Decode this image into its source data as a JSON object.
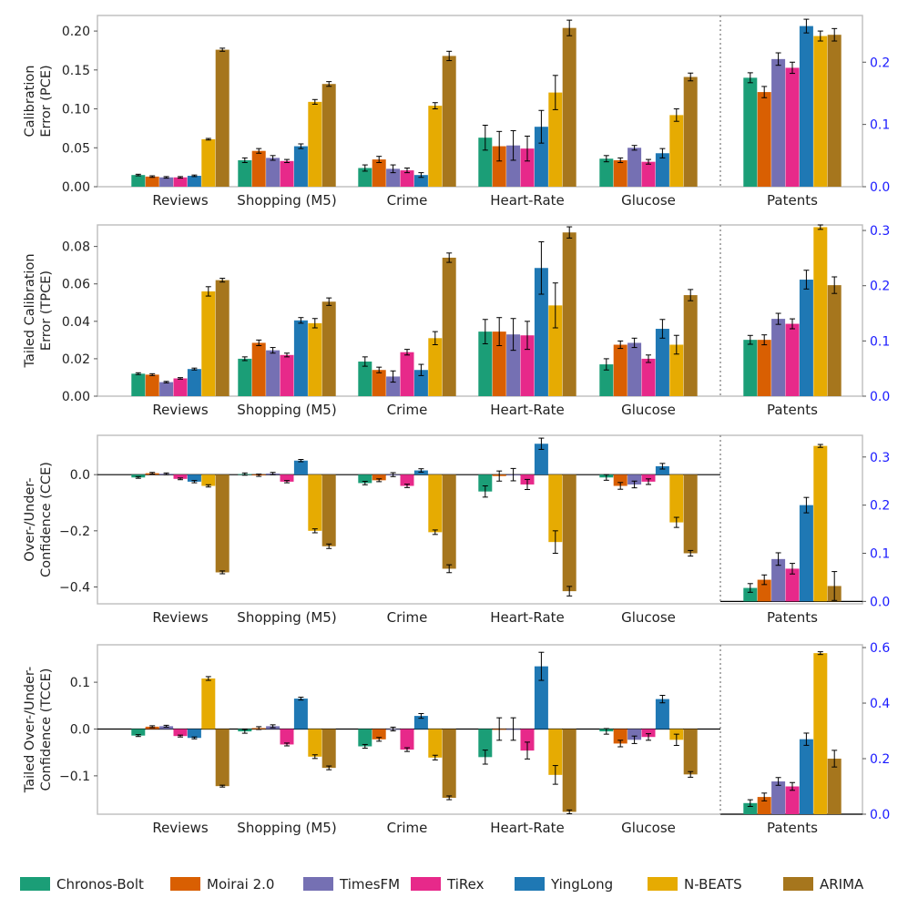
{
  "colors": {
    "Chronos-Bolt": "#1b9e77",
    "Moirai 2.0": "#d95f02",
    "TimesFM": "#7570b3",
    "TiRex": "#e7298a",
    "YingLong": "#1f78b4",
    "N-BEATS": "#e6ab02",
    "ARIMA": "#a6761d",
    "right_axis": "#1a1aff"
  },
  "chart_data": {
    "type": "bar",
    "categories": [
      "Reviews",
      "Shopping (M5)",
      "Crime",
      "Heart-Rate",
      "Glucose",
      "Patents"
    ],
    "models": [
      "Chronos-Bolt",
      "Moirai 2.0",
      "TimesFM",
      "TiRex",
      "YingLong",
      "N-BEATS",
      "ARIMA"
    ],
    "legend": [
      "Chronos-Bolt",
      "Moirai 2.0",
      "TimesFM",
      "TiRex",
      "YingLong",
      "N-BEATS",
      "ARIMA"
    ],
    "panels": [
      {
        "ylabel": [
          "Calibration",
          "Error (PCE)"
        ],
        "ylim": [
          0,
          0.22
        ],
        "yticks": [
          0.0,
          0.05,
          0.1,
          0.15,
          0.2
        ],
        "ytick_labels": [
          "0.00",
          "0.05",
          "0.10",
          "0.15",
          "0.20"
        ],
        "ylim_right": [
          0,
          0.275
        ],
        "yticks_right": [
          0.0,
          0.1,
          0.2
        ],
        "ytick_labels_right": [
          "0.0",
          "0.1",
          "0.2"
        ],
        "zero_line": false,
        "values": [
          [
            0.015,
            0.013,
            0.012,
            0.012,
            0.014,
            0.061,
            0.176
          ],
          [
            0.034,
            0.046,
            0.037,
            0.033,
            0.052,
            0.109,
            0.132
          ],
          [
            0.024,
            0.035,
            0.023,
            0.021,
            0.015,
            0.104,
            0.168
          ],
          [
            0.063,
            0.052,
            0.053,
            0.049,
            0.077,
            0.121,
            0.204
          ],
          [
            0.036,
            0.034,
            0.05,
            0.032,
            0.043,
            0.092,
            0.141
          ],
          [
            0.175,
            0.152,
            0.205,
            0.191,
            0.258,
            0.242,
            0.244
          ]
        ],
        "errors": [
          [
            0.001,
            0.001,
            0.001,
            0.001,
            0.001,
            0.001,
            0.002
          ],
          [
            0.003,
            0.003,
            0.003,
            0.002,
            0.003,
            0.003,
            0.003
          ],
          [
            0.004,
            0.004,
            0.005,
            0.003,
            0.003,
            0.004,
            0.006
          ],
          [
            0.016,
            0.019,
            0.019,
            0.016,
            0.021,
            0.022,
            0.01
          ],
          [
            0.004,
            0.003,
            0.003,
            0.003,
            0.006,
            0.008,
            0.005
          ],
          [
            0.008,
            0.009,
            0.01,
            0.009,
            0.011,
            0.008,
            0.01
          ]
        ]
      },
      {
        "ylabel": [
          "Tailed Calibration",
          "Error (TPCE)"
        ],
        "ylim": [
          0,
          0.0915
        ],
        "yticks": [
          0.0,
          0.02,
          0.04,
          0.06,
          0.08
        ],
        "ytick_labels": [
          "0.00",
          "0.02",
          "0.04",
          "0.06",
          "0.08"
        ],
        "ylim_right": [
          0,
          0.31
        ],
        "yticks_right": [
          0.0,
          0.1,
          0.2,
          0.3
        ],
        "ytick_labels_right": [
          "0.0",
          "0.1",
          "0.2",
          "0.3"
        ],
        "zero_line": false,
        "values": [
          [
            0.012,
            0.0115,
            0.0075,
            0.0095,
            0.0145,
            0.056,
            0.062
          ],
          [
            0.02,
            0.0285,
            0.0245,
            0.022,
            0.0405,
            0.039,
            0.0505
          ],
          [
            0.0185,
            0.014,
            0.0105,
            0.0235,
            0.014,
            0.031,
            0.074
          ],
          [
            0.0345,
            0.0345,
            0.033,
            0.0325,
            0.0685,
            0.0485,
            0.0875
          ],
          [
            0.017,
            0.0275,
            0.0285,
            0.02,
            0.036,
            0.0275,
            0.054
          ]
        ],
        "values_right_axis": [
          0.102,
          0.102,
          0.14,
          0.131,
          0.211,
          0.306,
          0.201
        ],
        "errors": [
          [
            0.0005,
            0.0005,
            0.0004,
            0.0004,
            0.0005,
            0.0025,
            0.001
          ],
          [
            0.001,
            0.0015,
            0.0015,
            0.001,
            0.0015,
            0.0025,
            0.002
          ],
          [
            0.0025,
            0.0015,
            0.003,
            0.0015,
            0.003,
            0.0035,
            0.0025
          ],
          [
            0.0065,
            0.0075,
            0.0085,
            0.0075,
            0.014,
            0.012,
            0.003
          ],
          [
            0.003,
            0.002,
            0.0025,
            0.002,
            0.005,
            0.005,
            0.003
          ]
        ],
        "errors_right_axis": [
          0.008,
          0.009,
          0.01,
          0.009,
          0.017,
          0.004,
          0.015
        ]
      },
      {
        "ylabel": [
          "Over-/Under-",
          "Confidence (CCE)"
        ],
        "ylim": [
          -0.46,
          0.14
        ],
        "yticks": [
          -0.4,
          -0.2,
          0.0
        ],
        "ytick_labels": [
          "−0.4",
          "−0.2",
          "0.0"
        ],
        "ylim_right": [
          -0.005,
          0.345
        ],
        "yticks_right": [
          0.0,
          0.1,
          0.2,
          0.3
        ],
        "ytick_labels_right": [
          "0.0",
          "0.1",
          "0.2",
          "0.3"
        ],
        "zero_line": true,
        "values": [
          [
            -0.01,
            0.005,
            0.003,
            -0.015,
            -0.025,
            -0.04,
            -0.348
          ],
          [
            0.002,
            -0.002,
            0.004,
            -0.025,
            0.05,
            -0.2,
            -0.255
          ],
          [
            -0.03,
            -0.02,
            0.0,
            -0.04,
            0.015,
            -0.205,
            -0.335
          ],
          [
            -0.06,
            -0.005,
            0.0,
            -0.035,
            0.11,
            -0.24,
            -0.415
          ],
          [
            -0.01,
            -0.04,
            -0.035,
            -0.025,
            0.03,
            -0.17,
            -0.28
          ]
        ],
        "values_right_axis": [
          0.028,
          0.045,
          0.088,
          0.068,
          0.2,
          0.323,
          0.032
        ],
        "errors": [
          [
            0.003,
            0.003,
            0.003,
            0.003,
            0.004,
            0.004,
            0.005
          ],
          [
            0.004,
            0.004,
            0.004,
            0.004,
            0.004,
            0.007,
            0.008
          ],
          [
            0.006,
            0.005,
            0.007,
            0.006,
            0.006,
            0.008,
            0.014
          ],
          [
            0.02,
            0.018,
            0.022,
            0.018,
            0.02,
            0.04,
            0.017
          ],
          [
            0.01,
            0.012,
            0.012,
            0.01,
            0.01,
            0.018,
            0.01
          ]
        ],
        "errors_right_axis": [
          0.009,
          0.01,
          0.013,
          0.011,
          0.016,
          0.003,
          0.03
        ]
      },
      {
        "ylabel": [
          "Tailed Over-/Under-",
          "Confidence (TCCE)"
        ],
        "ylim": [
          -0.182,
          0.18
        ],
        "yticks": [
          -0.1,
          0.0,
          0.1
        ],
        "ytick_labels": [
          "−0.1",
          "0.0",
          "0.1"
        ],
        "ylim_right": [
          0,
          0.61
        ],
        "yticks_right": [
          0.0,
          0.2,
          0.4,
          0.6
        ],
        "ytick_labels_right": [
          "0.0",
          "0.2",
          "0.4",
          "0.6"
        ],
        "zero_line": true,
        "values": [
          [
            -0.014,
            0.005,
            0.006,
            -0.015,
            -0.019,
            0.108,
            -0.122
          ],
          [
            -0.005,
            0.002,
            0.006,
            -0.033,
            0.065,
            -0.059,
            -0.083
          ],
          [
            -0.037,
            -0.022,
            0.0,
            -0.044,
            0.028,
            -0.061,
            -0.147
          ],
          [
            -0.06,
            0.0,
            0.0,
            -0.046,
            0.134,
            -0.098,
            -0.177
          ],
          [
            -0.005,
            -0.031,
            -0.023,
            -0.017,
            0.064,
            -0.023,
            -0.097
          ]
        ],
        "values_right_axis": [
          0.04,
          0.062,
          0.118,
          0.1,
          0.27,
          0.58,
          0.2
        ],
        "errors": [
          [
            0.002,
            0.002,
            0.002,
            0.002,
            0.002,
            0.004,
            0.002
          ],
          [
            0.004,
            0.003,
            0.003,
            0.003,
            0.003,
            0.004,
            0.004
          ],
          [
            0.004,
            0.004,
            0.004,
            0.004,
            0.005,
            0.005,
            0.004
          ],
          [
            0.015,
            0.024,
            0.024,
            0.018,
            0.03,
            0.02,
            0.004
          ],
          [
            0.006,
            0.007,
            0.008,
            0.007,
            0.008,
            0.012,
            0.006
          ]
        ],
        "errors_right_axis": [
          0.012,
          0.014,
          0.014,
          0.014,
          0.022,
          0.005,
          0.03
        ]
      }
    ]
  }
}
